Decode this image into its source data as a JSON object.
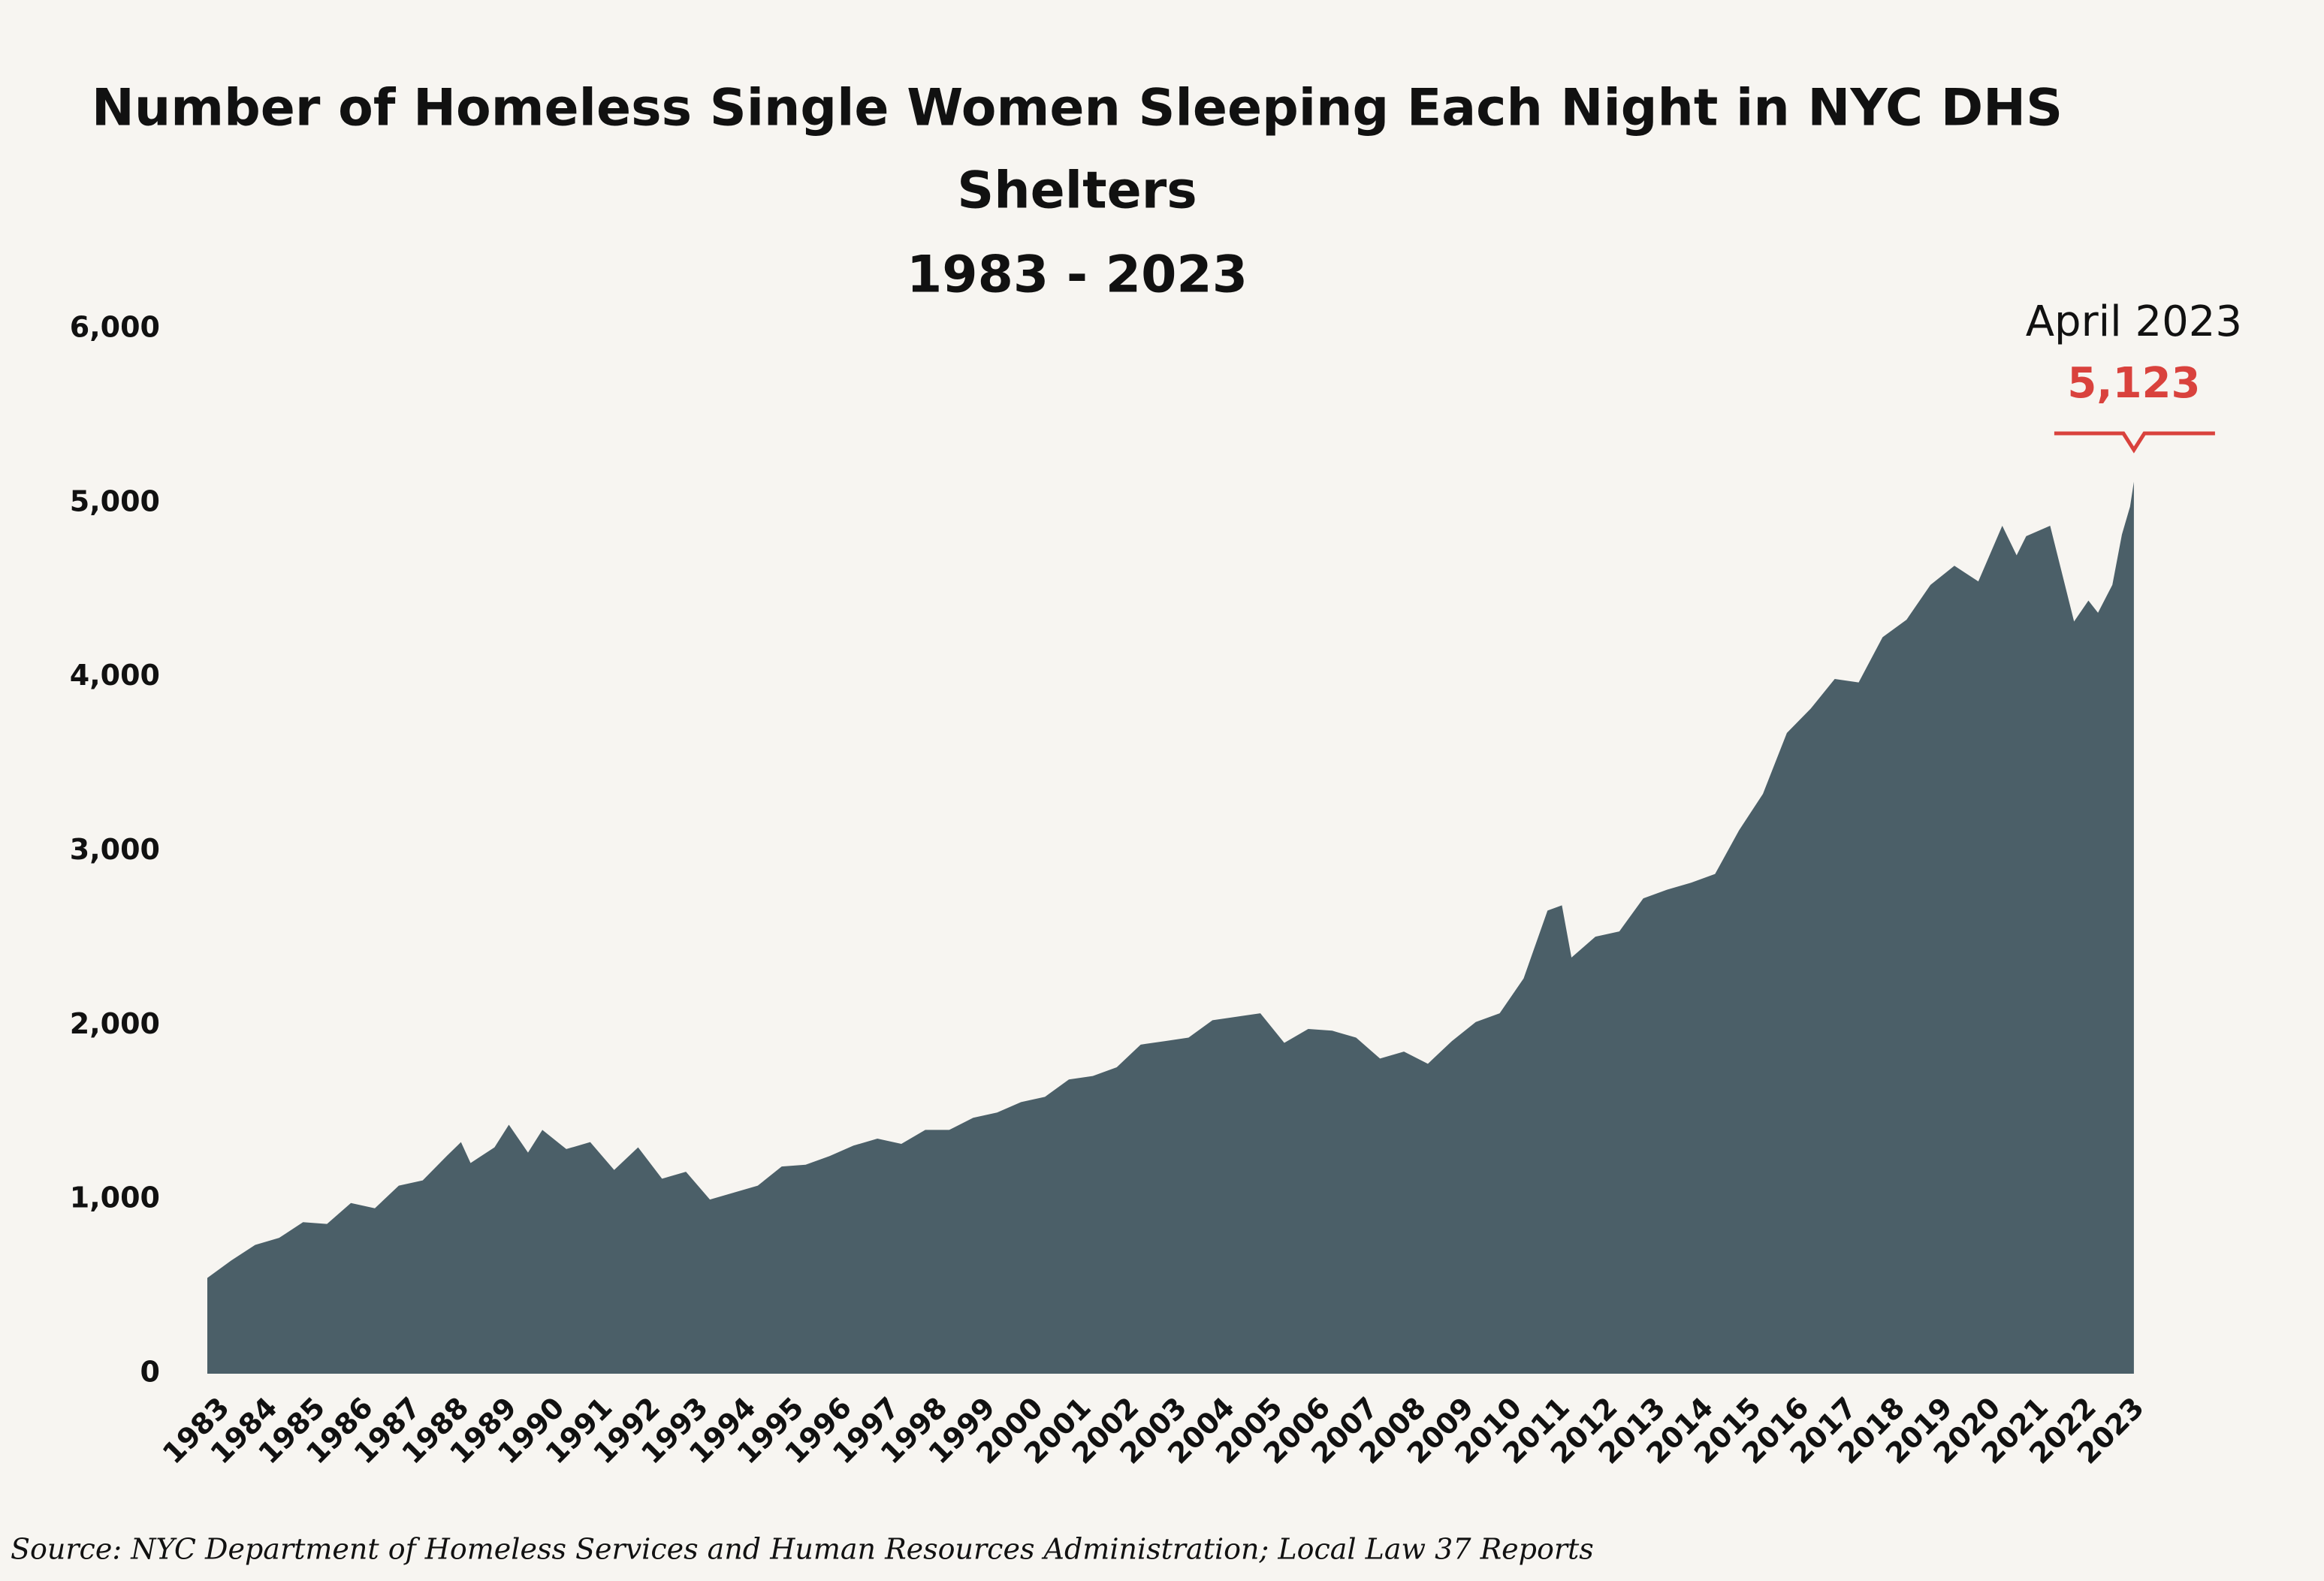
{
  "chart_data": {
    "type": "area",
    "title": "Number of Homeless Single Women Sleeping Each Night in NYC DHS",
    "title_line2": "Shelters",
    "subtitle": "1983 - 2023",
    "source": "Source:  NYC Department of Homeless Services and Human Resources Administration; Local Law 37 Reports",
    "color": "#4b5f68",
    "x": [
      1983.0,
      1983.5,
      1984.0,
      1984.5,
      1985.0,
      1985.5,
      1986.0,
      1986.5,
      1987.0,
      1987.5,
      1988.0,
      1988.3,
      1988.5,
      1989.0,
      1989.3,
      1989.7,
      1990.0,
      1990.5,
      1991.0,
      1991.5,
      1992.0,
      1992.5,
      1993.0,
      1993.5,
      1994.0,
      1994.5,
      1995.0,
      1995.5,
      1996.0,
      1996.5,
      1997.0,
      1997.5,
      1998.0,
      1998.5,
      1999.0,
      1999.5,
      2000.0,
      2000.5,
      2001.0,
      2001.5,
      2002.0,
      2002.5,
      2003.0,
      2003.5,
      2004.0,
      2004.5,
      2005.0,
      2005.5,
      2006.0,
      2006.5,
      2007.0,
      2007.5,
      2008.0,
      2008.5,
      2009.0,
      2009.5,
      2010.0,
      2010.5,
      2011.0,
      2011.3,
      2011.5,
      2012.0,
      2012.5,
      2013.0,
      2013.5,
      2014.0,
      2014.5,
      2015.0,
      2015.5,
      2016.0,
      2016.5,
      2017.0,
      2017.5,
      2018.0,
      2018.5,
      2019.0,
      2019.5,
      2020.0,
      2020.5,
      2020.8,
      2021.0,
      2021.5,
      2022.0,
      2022.3,
      2022.5,
      2022.8,
      2023.0,
      2023.17,
      2023.25
    ],
    "values": [
      550,
      650,
      740,
      780,
      870,
      860,
      980,
      950,
      1080,
      1110,
      1250,
      1330,
      1210,
      1300,
      1430,
      1270,
      1400,
      1290,
      1330,
      1170,
      1300,
      1120,
      1160,
      1000,
      1040,
      1080,
      1190,
      1200,
      1250,
      1310,
      1350,
      1320,
      1400,
      1400,
      1470,
      1500,
      1560,
      1590,
      1690,
      1710,
      1760,
      1890,
      1910,
      1930,
      2030,
      2050,
      2070,
      1900,
      1980,
      1970,
      1930,
      1810,
      1850,
      1780,
      1910,
      2020,
      2070,
      2270,
      2660,
      2690,
      2390,
      2510,
      2540,
      2730,
      2780,
      2820,
      2870,
      3120,
      3330,
      3680,
      3820,
      3990,
      3970,
      4230,
      4330,
      4530,
      4640,
      4550,
      4870,
      4700,
      4810,
      4870,
      4320,
      4440,
      4370,
      4530,
      4820,
      4980,
      5123
    ],
    "xlim": [
      1983,
      2023.33
    ],
    "xticks": [
      1983,
      1984,
      1985,
      1986,
      1987,
      1988,
      1989,
      1990,
      1991,
      1992,
      1993,
      1994,
      1995,
      1996,
      1997,
      1998,
      1999,
      2000,
      2001,
      2002,
      2003,
      2004,
      2005,
      2006,
      2007,
      2008,
      2009,
      2010,
      2011,
      2012,
      2013,
      2014,
      2015,
      2016,
      2017,
      2018,
      2019,
      2020,
      2021,
      2022,
      2023
    ],
    "ylim": [
      0,
      6000
    ],
    "yticks": [
      0,
      {
        "value": 1000,
        "label": "1,000"
      },
      {
        "value": 2000,
        "label": "2,000"
      },
      {
        "value": 3000,
        "label": "3,000"
      },
      {
        "value": 4000,
        "label": "4,000"
      },
      {
        "value": 5000,
        "label": "5,000"
      },
      {
        "value": 6000,
        "label": "6,000"
      }
    ],
    "grid": false,
    "annotation": {
      "text": "April 2023",
      "x": 2023.25,
      "value": 5123,
      "value_label": "5,123",
      "color": "#d9423d"
    }
  }
}
